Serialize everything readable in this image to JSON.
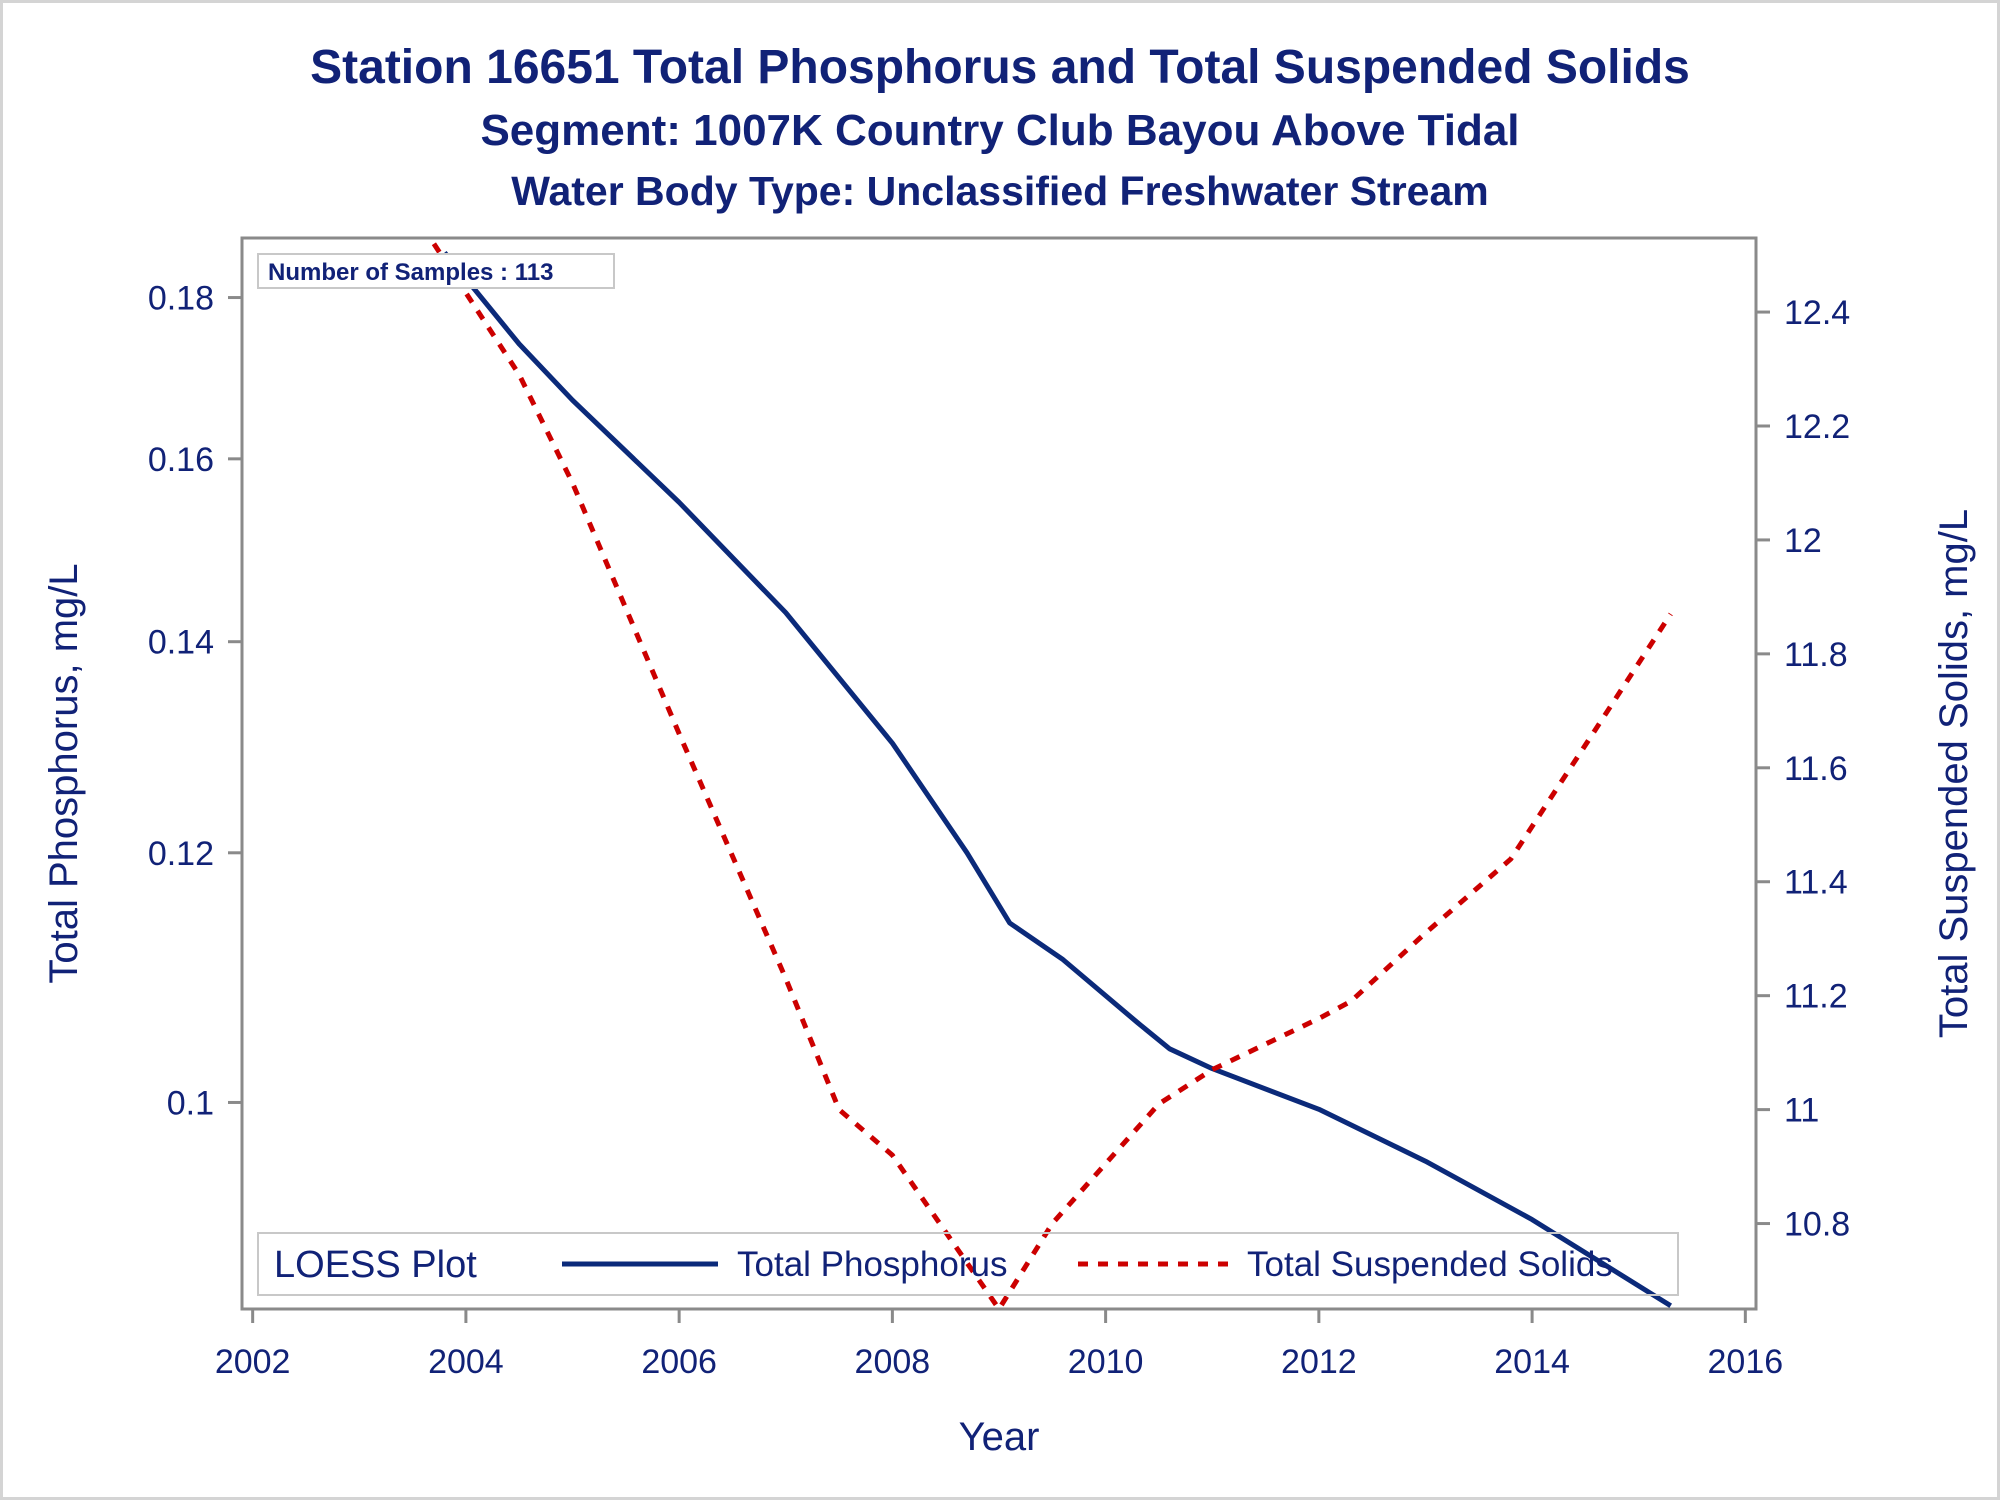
{
  "titles": {
    "line1": "Station 16651  Total Phosphorus and Total Suspended Solids",
    "line2": "Segment: 1007K  Country Club Bayou Above Tidal",
    "line3": "Water Body Type: Unclassified Freshwater Stream"
  },
  "inset_label": "Number of Samples : 113",
  "legend": {
    "title": "LOESS Plot",
    "items": [
      "Total Phosphorus",
      "Total Suspended Solids"
    ]
  },
  "colors": {
    "text": "#112277",
    "phosphorus": "#0b2a7a",
    "tss": "#cc0000",
    "axis": "#8a8a8a"
  },
  "chart_data": {
    "type": "line",
    "xlabel": "Year",
    "ylabel": "Total Phosphorus, mg/L",
    "y2label": "Total Suspended Solids, mg/L",
    "xlim": [
      2001.9,
      2016.1
    ],
    "xticks": [
      "2002",
      "2004",
      "2006",
      "2008",
      "2010",
      "2012",
      "2014",
      "2016"
    ],
    "ylim": [
      0.086,
      0.188
    ],
    "yticks": [
      "0.1",
      "0.12",
      "0.14",
      "0.16",
      "0.18"
    ],
    "y_scale": "log",
    "y2lim": [
      10.65,
      12.53
    ],
    "y2ticks": [
      "10.8",
      "11",
      "11.2",
      "11.4",
      "11.6",
      "11.8",
      "12",
      "12.2",
      "12.4"
    ],
    "grid": false,
    "legend_position": "bottom-inside",
    "series": [
      {
        "name": "Total Phosphorus",
        "axis": "left",
        "style": "solid",
        "x": [
          2003.8,
          2004.5,
          2005,
          2006,
          2007,
          2008,
          2008.7,
          2009.1,
          2009.6,
          2010.3,
          2010.6,
          2011,
          2012,
          2013,
          2014,
          2015.3
        ],
        "y": [
          0.186,
          0.174,
          0.167,
          0.155,
          0.143,
          0.13,
          0.12,
          0.114,
          0.111,
          0.106,
          0.104,
          0.1025,
          0.0995,
          0.0958,
          0.0918,
          0.0862
        ]
      },
      {
        "name": "Total Suspended Solids",
        "axis": "right",
        "style": "dashed",
        "x": [
          2003.7,
          2004.5,
          2005,
          2006,
          2007,
          2007.5,
          2008,
          2009,
          2009.5,
          2010.5,
          2011,
          2012,
          2012.3,
          2013,
          2013.8,
          2014.5,
          2015.3
        ],
        "y": [
          12.52,
          12.29,
          12.1,
          11.66,
          11.23,
          11.0,
          10.92,
          10.65,
          10.8,
          11.01,
          11.07,
          11.16,
          11.19,
          11.31,
          11.44,
          11.64,
          11.87
        ]
      }
    ]
  }
}
